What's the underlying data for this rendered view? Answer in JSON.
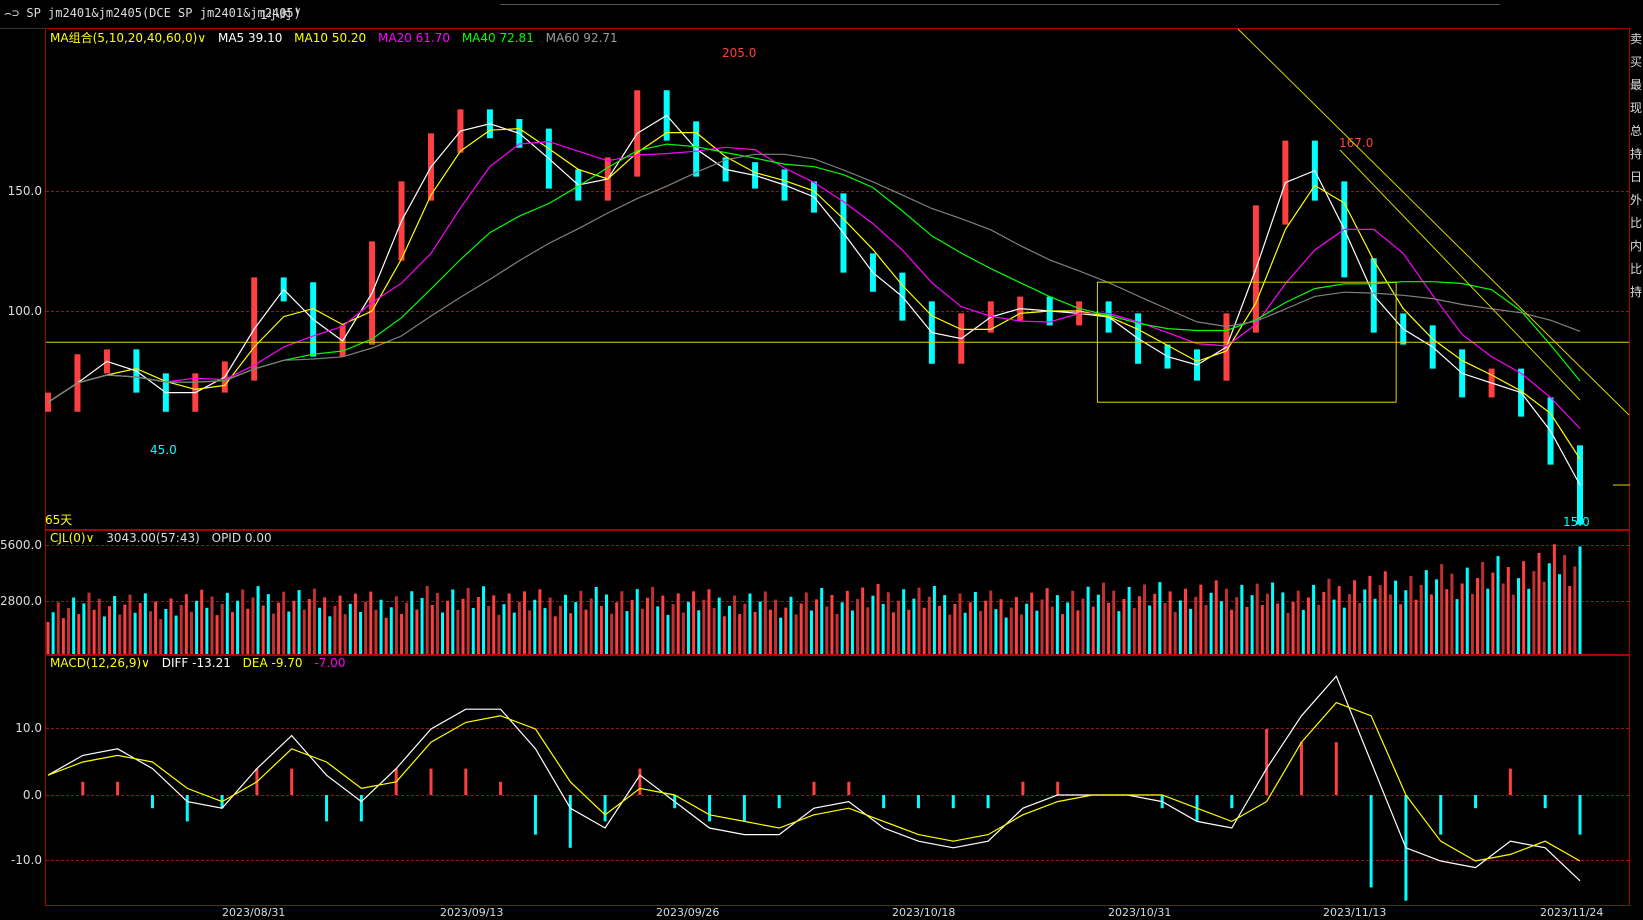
{
  "window": {
    "symbol_text": "⌢⊃ SP jm2401&jm2405(DCE SP jm2401&jm2405)",
    "period": "1小时",
    "period_caret": "∨"
  },
  "price_panel": {
    "legend": {
      "ma_group": "MA组合(5,10,20,40,60,0)∨",
      "ma5": "MA5 39.10",
      "ma10": "MA10 50.20",
      "ma20": "MA20 61.70",
      "ma40": "MA40 72.81",
      "ma60": "MA60 92.71"
    },
    "y_ticks": [
      "150.0",
      "100.0"
    ],
    "annotations": {
      "high1": "205.0",
      "high2": "167.0",
      "low1": "45.0",
      "low2": "15.0",
      "days": "65天"
    },
    "colors": {
      "up": "#ff4040",
      "down": "#00ffff",
      "ma5": "#ffffff",
      "ma10": "#ffff00",
      "ma20": "#ff00ff",
      "ma40": "#00ff00",
      "ma60": "#808080",
      "lines": "#d8d800"
    }
  },
  "volume_panel": {
    "legend": {
      "name": "CJL(0)∨",
      "value": "3043.00(57:43)",
      "opid": "OPID 0.00"
    },
    "y_ticks": [
      "5600.0",
      "2800.0"
    ]
  },
  "macd_panel": {
    "legend": {
      "name": "MACD(12,26,9)∨",
      "diff": "DIFF -13.21",
      "dea": "DEA -9.70",
      "macd": "-7.00"
    },
    "y_ticks": [
      "10.0",
      "0.0",
      "-10.0"
    ]
  },
  "x_axis": {
    "dates": [
      "2023/08/31",
      "2023/09/13",
      "2023/09/26",
      "2023/10/18",
      "2023/10/31",
      "2023/11/13",
      "2023/11/24"
    ]
  },
  "side_panel": {
    "chars": [
      "卖",
      "买",
      "最",
      "现",
      "总",
      "持",
      "日",
      "外",
      "比",
      "内",
      "比",
      "持"
    ]
  },
  "chart_data": {
    "type": "line",
    "series_note_free": true,
    "price": {
      "series": [
        {
          "name": "MA5 39.10",
          "color": "#ffffff"
        },
        {
          "name": "MA10 50.20",
          "color": "#ffff00"
        },
        {
          "name": "MA20 61.70",
          "color": "#ff00ff"
        },
        {
          "name": "MA40 72.81",
          "color": "#00ff00"
        },
        {
          "name": "MA60 92.71",
          "color": "#808080"
        }
      ],
      "close_trend": [
        62,
        78,
        80,
        70,
        62,
        70,
        75,
        110,
        108,
        85,
        90,
        125,
        150,
        170,
        180,
        176,
        172,
        155,
        150,
        160,
        188,
        175,
        160,
        158,
        155,
        150,
        145,
        120,
        112,
        100,
        82,
        95,
        100,
        102,
        98,
        100,
        95,
        82,
        80,
        75,
        95,
        140,
        167,
        150,
        118,
        95,
        90,
        80,
        68,
        72,
        60,
        40,
        15
      ],
      "ylim": [
        15,
        205
      ],
      "gridlines": [
        100,
        150
      ],
      "horizontal_level": 87,
      "box": {
        "from_x": 0.685,
        "to_x": 0.88,
        "top": 112,
        "bottom": 62
      }
    },
    "volume": {
      "ylim": [
        0,
        6000
      ],
      "gridlines": [
        2800,
        5600
      ],
      "level_trend": [
        2500,
        2900,
        2700,
        3000,
        3100,
        2900,
        2800,
        3200,
        3000,
        2900,
        3100,
        3000,
        2900,
        2800,
        3100,
        3200,
        3000,
        2800,
        3100,
        3300,
        3200,
        3400,
        3100,
        3600,
        3800,
        4200,
        4500,
        5200
      ]
    },
    "macd": {
      "ylim": [
        -16,
        18
      ],
      "gridlines": [
        10,
        0,
        -10
      ],
      "diff_trend": [
        3,
        6,
        7,
        4,
        -1,
        -2,
        4,
        9,
        3,
        -1,
        4,
        10,
        13,
        13,
        7,
        -2,
        -5,
        3,
        -1,
        -5,
        -6,
        -6,
        -2,
        -1,
        -5,
        -7,
        -8,
        -7,
        -2,
        0,
        0,
        0,
        -1,
        -4,
        -5,
        4,
        12,
        18,
        5,
        -8,
        -10,
        -11,
        -7,
        -8,
        -13
      ],
      "dea_trend": [
        3,
        5,
        6,
        5,
        1,
        -1,
        2,
        7,
        5,
        1,
        2,
        8,
        11,
        12,
        10,
        2,
        -3,
        1,
        0,
        -3,
        -4,
        -5,
        -3,
        -2,
        -4,
        -6,
        -7,
        -6,
        -3,
        -1,
        0,
        0,
        0,
        -2,
        -4,
        -1,
        8,
        14,
        12,
        0,
        -7,
        -10,
        -9,
        -7,
        -10
      ]
    },
    "x_dates": [
      "2023/08/31",
      "2023/09/13",
      "2023/09/26",
      "2023/10/18",
      "2023/10/31",
      "2023/11/13",
      "2023/11/24"
    ]
  }
}
